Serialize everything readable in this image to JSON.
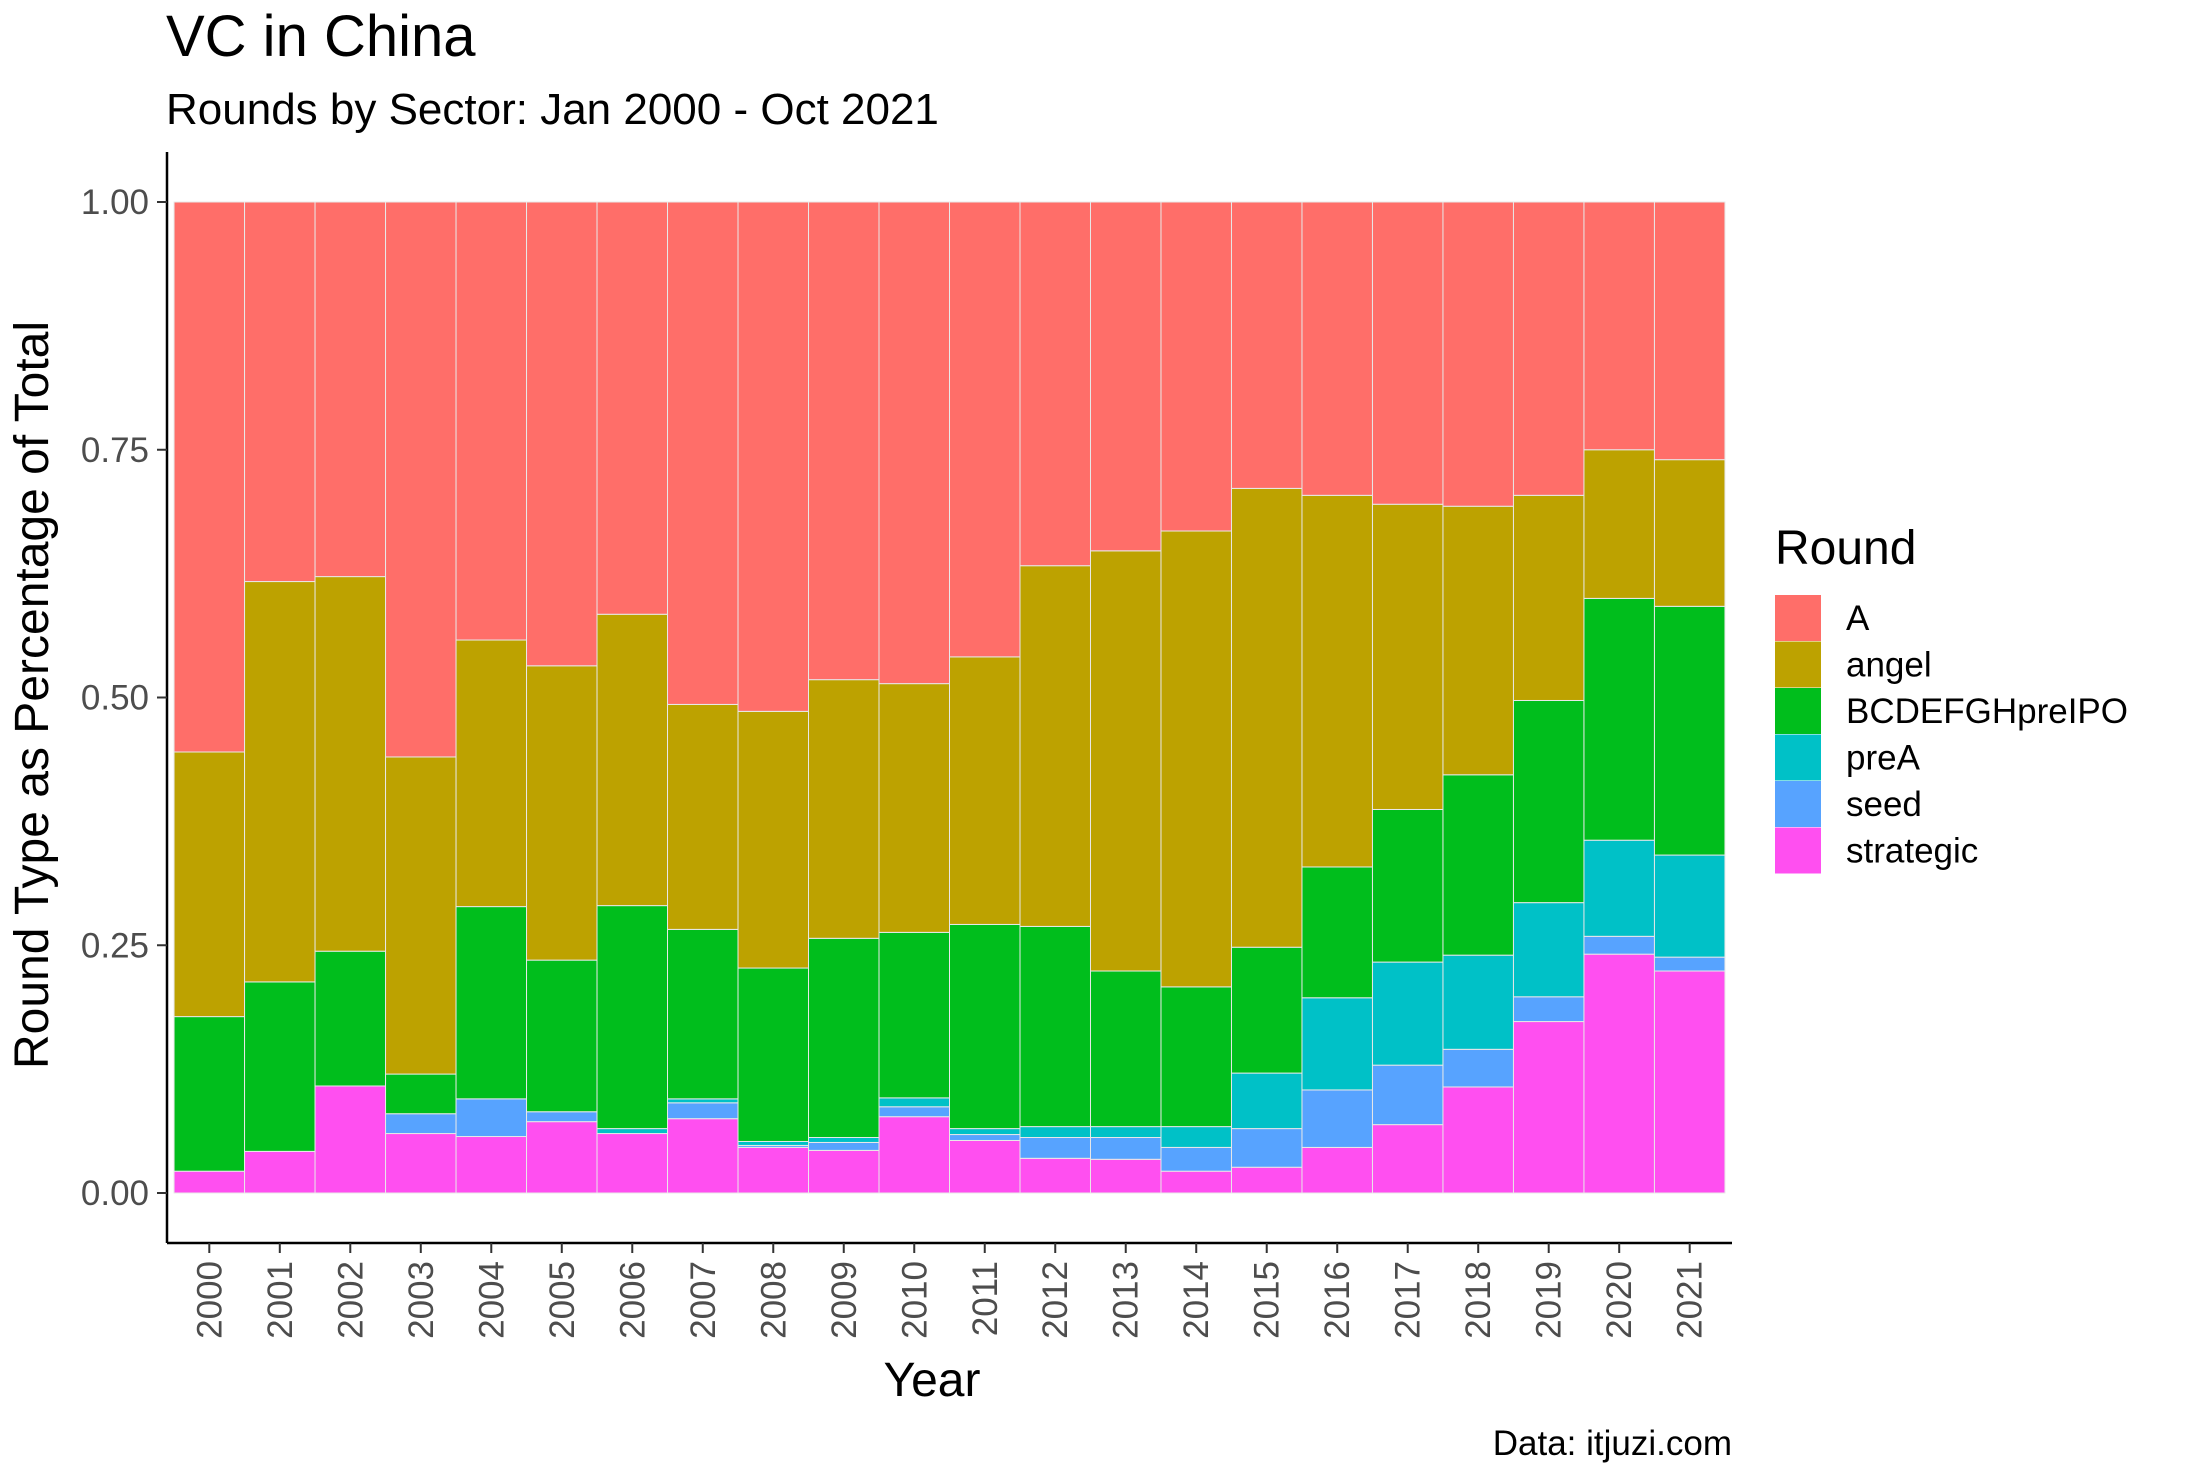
{
  "chart_data": {
    "type": "bar",
    "stacked": "fill",
    "title": "VC in China",
    "subtitle": "Rounds by Sector: Jan 2000 - Oct 2021",
    "xlabel": "Year",
    "ylabel": "Round Type as Percentage of Total",
    "caption": "Data: itjuzi.com",
    "ylim": [
      0,
      1
    ],
    "y_ticks": [
      "0.00",
      "0.25",
      "0.50",
      "0.75",
      "1.00"
    ],
    "legend_title": "Round",
    "legend_position": "right",
    "grid": false,
    "categories": [
      "2000",
      "2001",
      "2002",
      "2003",
      "2004",
      "2005",
      "2006",
      "2007",
      "2008",
      "2009",
      "2010",
      "2011",
      "2012",
      "2013",
      "2014",
      "2015",
      "2016",
      "2017",
      "2018",
      "2019",
      "2020",
      "2021"
    ],
    "series": [
      {
        "name": "strategic",
        "color": "#FF4FF0",
        "values": [
          0.022,
          0.042,
          0.108,
          0.06,
          0.057,
          0.072,
          0.06,
          0.075,
          0.046,
          0.043,
          0.077,
          0.053,
          0.035,
          0.034,
          0.022,
          0.026,
          0.046,
          0.069,
          0.107,
          0.173,
          0.241,
          0.224
        ]
      },
      {
        "name": "seed",
        "color": "#57A3FF",
        "values": [
          0.0,
          0.0,
          0.0,
          0.02,
          0.038,
          0.01,
          0.0,
          0.016,
          0.002,
          0.008,
          0.01,
          0.006,
          0.021,
          0.022,
          0.024,
          0.039,
          0.058,
          0.06,
          0.038,
          0.025,
          0.018,
          0.014
        ]
      },
      {
        "name": "preA",
        "color": "#00C1C7",
        "values": [
          0.0,
          0.0,
          0.0,
          0.0,
          0.0,
          0.0,
          0.005,
          0.004,
          0.004,
          0.005,
          0.009,
          0.006,
          0.011,
          0.011,
          0.021,
          0.056,
          0.093,
          0.104,
          0.095,
          0.095,
          0.097,
          0.103
        ]
      },
      {
        "name": "BCDEFGHpreIPO",
        "color": "#00BE1C",
        "values": [
          0.156,
          0.171,
          0.136,
          0.04,
          0.194,
          0.153,
          0.225,
          0.171,
          0.175,
          0.201,
          0.167,
          0.206,
          0.202,
          0.157,
          0.141,
          0.127,
          0.132,
          0.154,
          0.182,
          0.204,
          0.244,
          0.251
        ]
      },
      {
        "name": "angel",
        "color": "#BDA200",
        "values": [
          0.267,
          0.404,
          0.378,
          0.32,
          0.269,
          0.297,
          0.294,
          0.227,
          0.259,
          0.261,
          0.251,
          0.27,
          0.364,
          0.424,
          0.46,
          0.463,
          0.375,
          0.308,
          0.271,
          0.207,
          0.15,
          0.148
        ]
      },
      {
        "name": "A",
        "color": "#FF6E69",
        "values": [
          0.555,
          0.383,
          0.378,
          0.56,
          0.442,
          0.468,
          0.416,
          0.507,
          0.514,
          0.482,
          0.486,
          0.459,
          0.367,
          0.352,
          0.332,
          0.289,
          0.296,
          0.305,
          0.307,
          0.296,
          0.25,
          0.26
        ]
      }
    ],
    "legend_order": [
      "A",
      "angel",
      "BCDEFGHpreIPO",
      "preA",
      "seed",
      "strategic"
    ]
  }
}
